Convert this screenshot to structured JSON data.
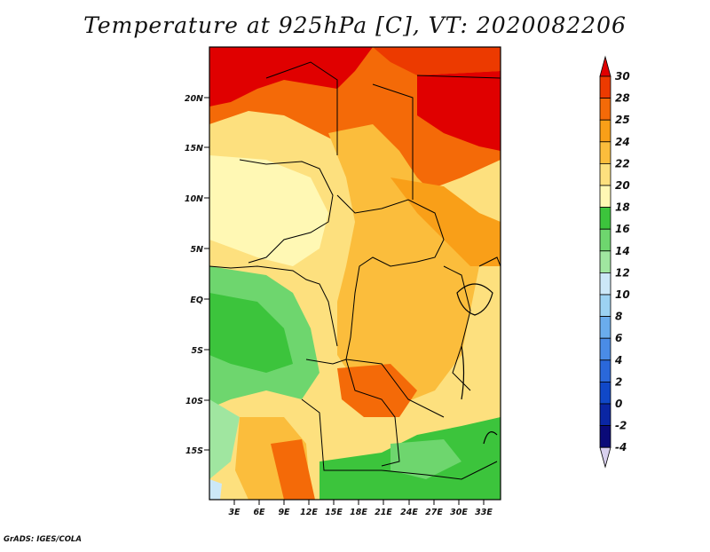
{
  "title": "Temperature at 925hPa [C], VT: 2020082206",
  "credit": "GrADS: IGES/COLA",
  "lat_labels": [
    "20N",
    "15N",
    "10N",
    "5N",
    "EQ",
    "5S",
    "10S",
    "15S"
  ],
  "lon_labels": [
    "3E",
    "6E",
    "9E",
    "12E",
    "15E",
    "18E",
    "21E",
    "24E",
    "27E",
    "30E",
    "33E"
  ],
  "colorbar": {
    "levels": [
      "30",
      "28",
      "25",
      "24",
      "22",
      "20",
      "18",
      "16",
      "14",
      "12",
      "10",
      "8",
      "6",
      "4",
      "2",
      "0",
      "-2",
      "-4"
    ],
    "colors": [
      "#e00000",
      "#ec3a00",
      "#f46a08",
      "#f99f18",
      "#fbbd3c",
      "#fde07e",
      "#fff8b4",
      "#3cc43c",
      "#6ed66e",
      "#a0e6a0",
      "#cce8f8",
      "#9cd2f2",
      "#6aacec",
      "#4a8ce6",
      "#2a68da",
      "#1048c8",
      "#0a26a4",
      "#0a0a78",
      "#d8d0ee"
    ]
  },
  "legend_colors": {
    "ocean_cool": "#6ed66e",
    "warm_core": "#f99f18",
    "hot_north": "#e00000",
    "border_line": "#000000"
  }
}
